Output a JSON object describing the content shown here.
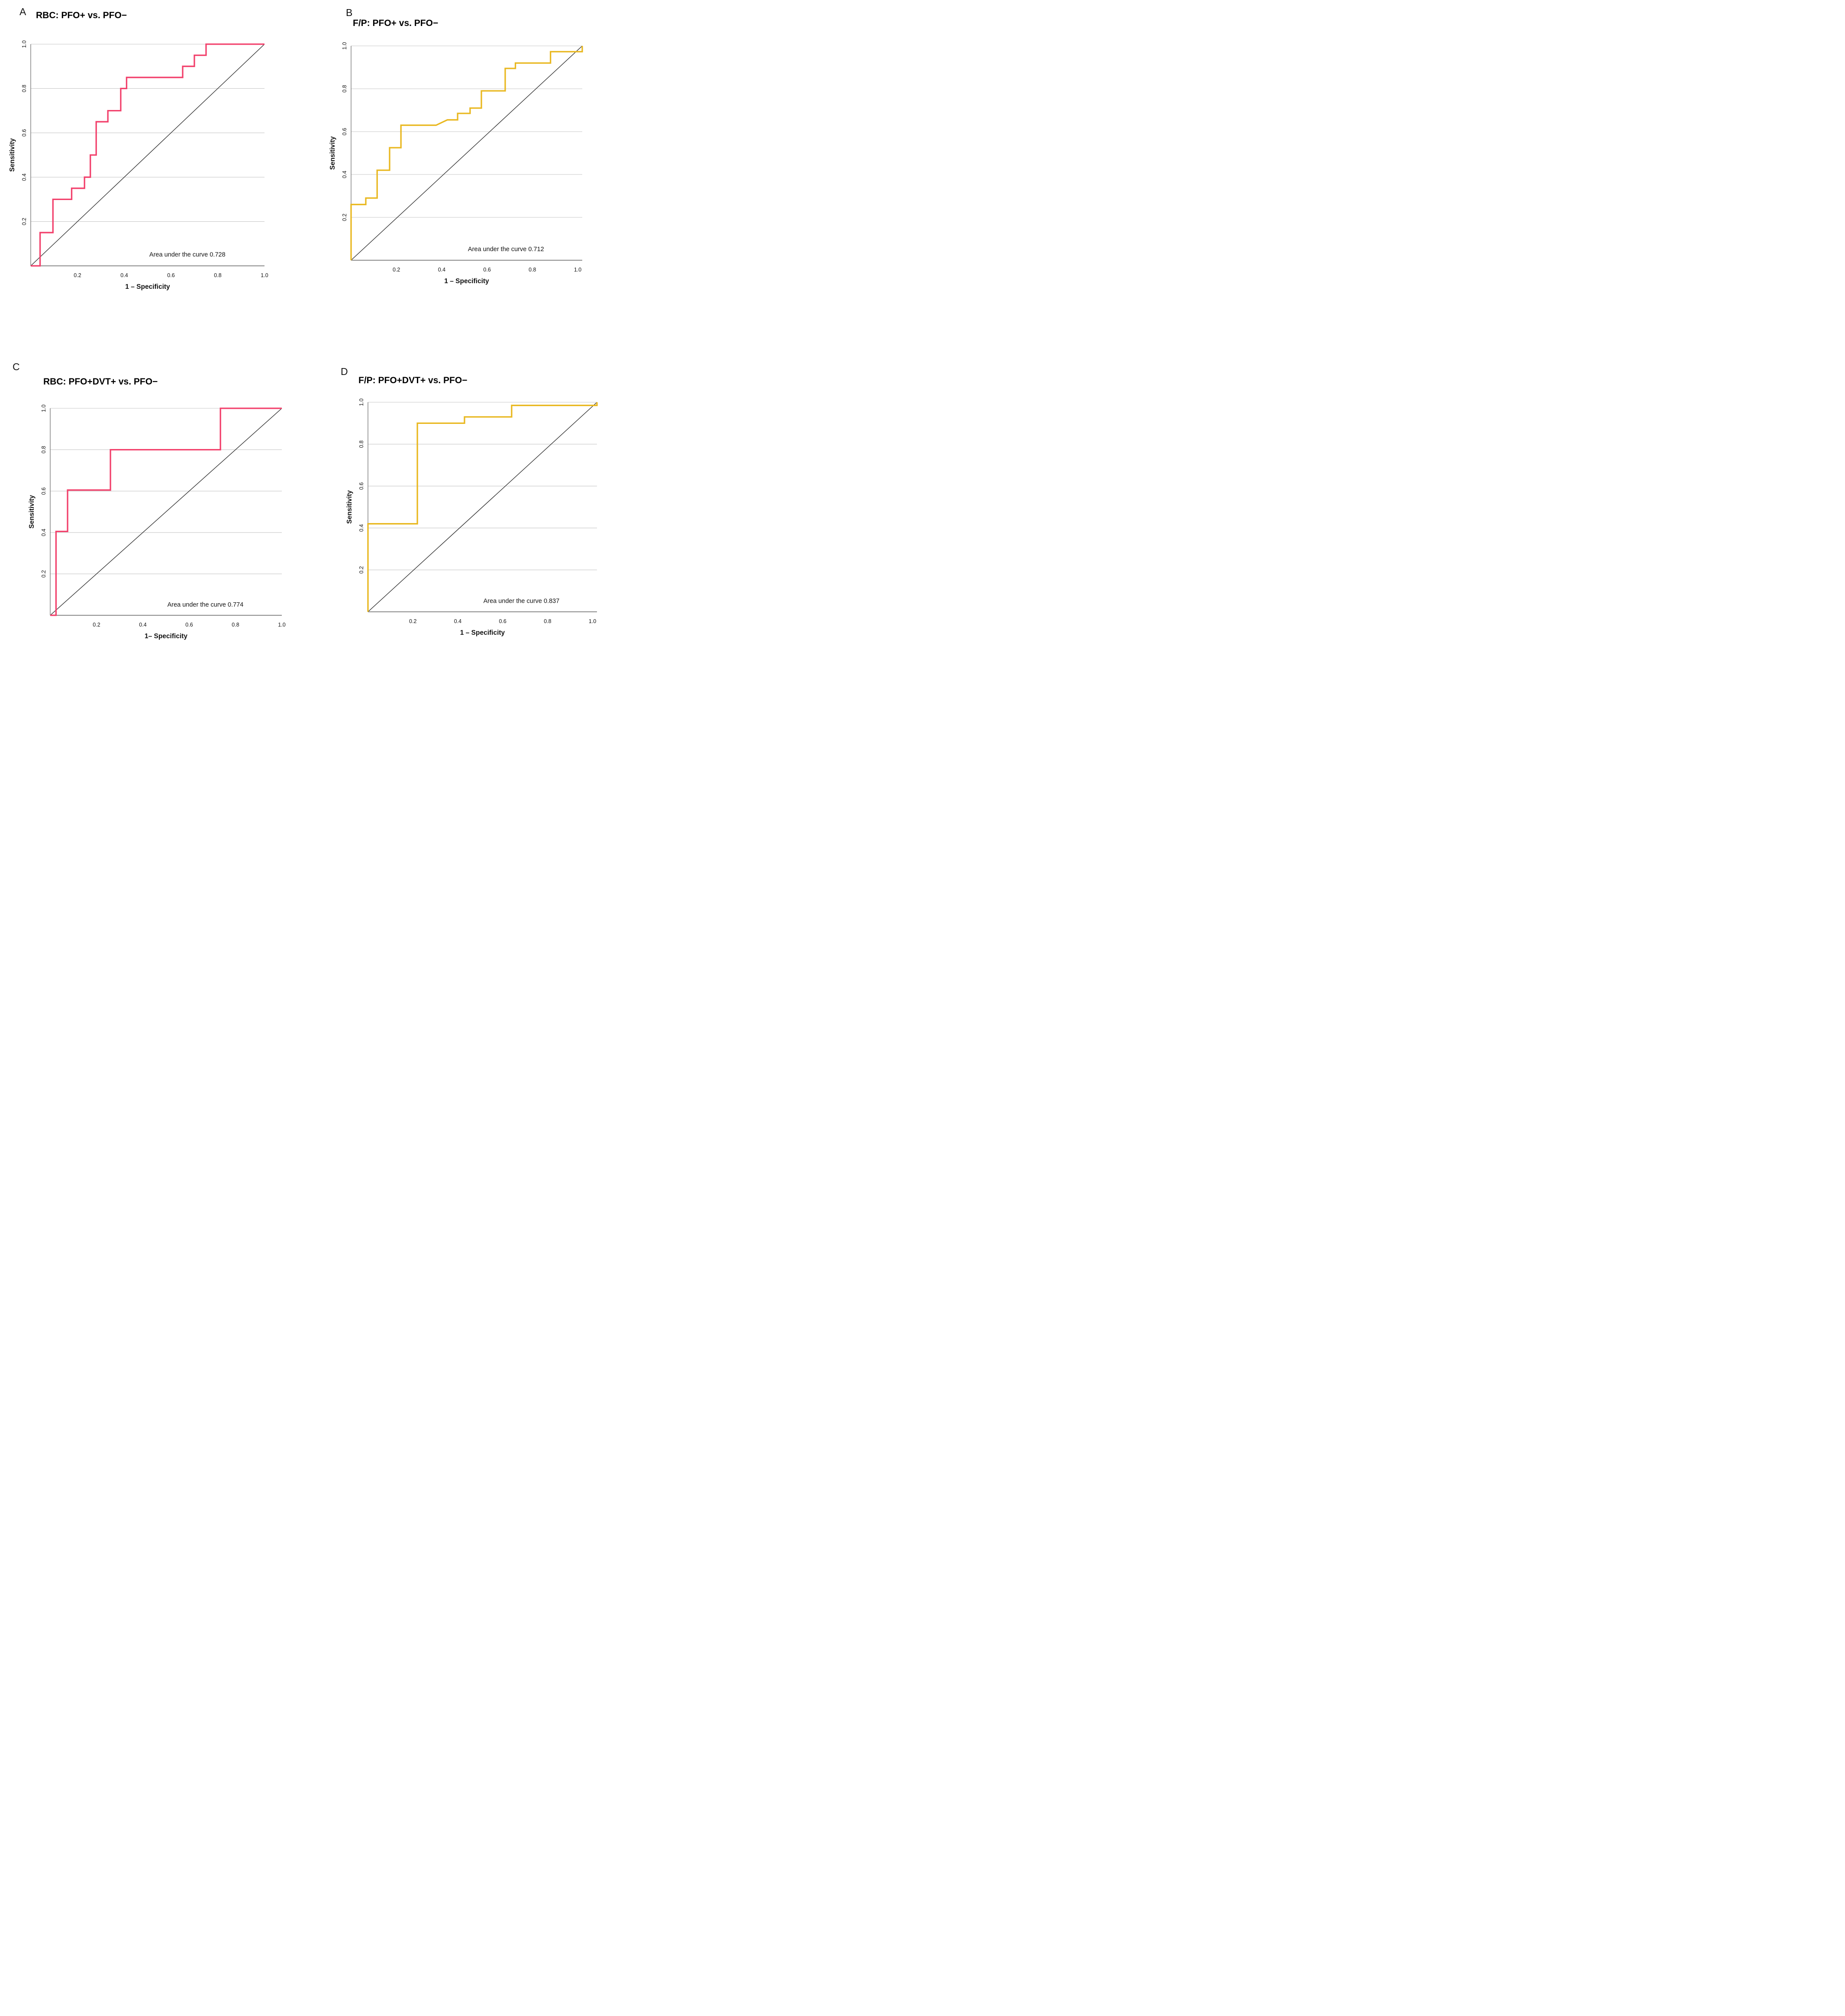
{
  "figure": {
    "background": "#ffffff",
    "description": "Four-panel ROC curve figure comparing RBC and F/P measures for PFO+ vs PFO- and PFO+DVT+ vs PFO-"
  },
  "style": {
    "grid_color": "#c7c7c7",
    "axis_color": "#7a7a7a",
    "diagonal_color": "#333333",
    "text_color": "#111111",
    "rbc_curve_color": "#f2416c",
    "fp_curve_color": "#e9b821"
  },
  "chart_data": [
    {
      "type": "line",
      "kind": "roc-step-curve",
      "panel_label": "A",
      "title": "RBC: PFO+ vs. PFO−",
      "xlabel": "1 – Specificity",
      "ylabel": "Sensitivity",
      "auc": 0.728,
      "auc_label": "Area under the curve 0.728",
      "line_color": "#f2416c",
      "xlim": [
        0,
        1.0
      ],
      "ylim": [
        0,
        1.0
      ],
      "x_ticks": [
        "0.2",
        "0.4",
        "0.6",
        "0.8",
        "1.0"
      ],
      "y_ticks": [
        "0.2",
        "0.4",
        "0.6",
        "0.8",
        "1.0"
      ],
      "grid": "horizontal-only",
      "diagonal_reference": true,
      "legend": "none",
      "roc_points": [
        [
          0,
          0
        ],
        [
          0.04,
          0
        ],
        [
          0.04,
          0.15
        ],
        [
          0.095,
          0.15
        ],
        [
          0.095,
          0.3
        ],
        [
          0.175,
          0.3
        ],
        [
          0.175,
          0.35
        ],
        [
          0.23,
          0.35
        ],
        [
          0.23,
          0.4
        ],
        [
          0.255,
          0.4
        ],
        [
          0.255,
          0.5
        ],
        [
          0.28,
          0.5
        ],
        [
          0.28,
          0.65
        ],
        [
          0.33,
          0.65
        ],
        [
          0.33,
          0.7
        ],
        [
          0.385,
          0.7
        ],
        [
          0.385,
          0.8
        ],
        [
          0.41,
          0.8
        ],
        [
          0.41,
          0.85
        ],
        [
          0.65,
          0.85
        ],
        [
          0.65,
          0.9
        ],
        [
          0.7,
          0.9
        ],
        [
          0.7,
          0.95
        ],
        [
          0.75,
          0.95
        ],
        [
          0.75,
          1.0
        ],
        [
          1.0,
          1.0
        ]
      ]
    },
    {
      "type": "line",
      "kind": "roc-step-curve",
      "panel_label": "B",
      "title": "F/P: PFO+ vs. PFO−",
      "xlabel": "1 – Specificity",
      "ylabel": "Sensitivity",
      "auc": 0.712,
      "auc_label": "Area under the curve 0.712",
      "line_color": "#e9b821",
      "xlim": [
        0,
        1.02
      ],
      "ylim": [
        0,
        1.0
      ],
      "x_ticks": [
        "0.2",
        "0.4",
        "0.6",
        "0.8",
        "1.0"
      ],
      "y_ticks": [
        "0.2",
        "0.4",
        "0.6",
        "0.8",
        "1.0"
      ],
      "grid": "horizontal-only",
      "diagonal_reference": true,
      "legend": "none",
      "roc_points": [
        [
          0,
          0
        ],
        [
          0,
          0.26
        ],
        [
          0.065,
          0.26
        ],
        [
          0.065,
          0.29
        ],
        [
          0.115,
          0.29
        ],
        [
          0.115,
          0.42
        ],
        [
          0.17,
          0.42
        ],
        [
          0.17,
          0.525
        ],
        [
          0.22,
          0.525
        ],
        [
          0.22,
          0.63
        ],
        [
          0.375,
          0.63
        ],
        [
          0.425,
          0.655
        ],
        [
          0.47,
          0.655
        ],
        [
          0.47,
          0.685
        ],
        [
          0.525,
          0.685
        ],
        [
          0.525,
          0.71
        ],
        [
          0.575,
          0.71
        ],
        [
          0.575,
          0.79
        ],
        [
          0.68,
          0.79
        ],
        [
          0.68,
          0.895
        ],
        [
          0.725,
          0.895
        ],
        [
          0.725,
          0.92
        ],
        [
          0.88,
          0.92
        ],
        [
          0.88,
          0.973
        ],
        [
          1.02,
          0.973
        ],
        [
          1.02,
          1.0
        ]
      ]
    },
    {
      "type": "line",
      "kind": "roc-step-curve",
      "panel_label": "C",
      "title": "RBC: PFO+DVT+ vs. PFO−",
      "xlabel": "1– Specificity",
      "ylabel": "Sensitivity",
      "auc": 0.774,
      "auc_label": "Area under the curve 0.774",
      "line_color": "#f2416c",
      "xlim": [
        0,
        1.0
      ],
      "ylim": [
        0,
        1.0
      ],
      "x_ticks": [
        "0.2",
        "0.4",
        "0.6",
        "0.8",
        "1.0"
      ],
      "y_ticks": [
        "0.2",
        "0.4",
        "0.6",
        "0.8",
        "1.0"
      ],
      "grid": "horizontal-only",
      "diagonal_reference": true,
      "legend": "none",
      "roc_points": [
        [
          0,
          0
        ],
        [
          0.025,
          0
        ],
        [
          0.025,
          0.405
        ],
        [
          0.075,
          0.405
        ],
        [
          0.075,
          0.605
        ],
        [
          0.26,
          0.605
        ],
        [
          0.26,
          0.8
        ],
        [
          0.735,
          0.8
        ],
        [
          0.735,
          1.0
        ],
        [
          1.0,
          1.0
        ]
      ]
    },
    {
      "type": "line",
      "kind": "roc-step-curve",
      "panel_label": "D",
      "title": "F/P: PFO+DVT+ vs. PFO−",
      "xlabel": "1 – Specificity",
      "ylabel": "Sensitivity",
      "auc": 0.837,
      "auc_label": "Area under the curve 0.837",
      "line_color": "#e9b821",
      "xlim": [
        0,
        1.02
      ],
      "ylim": [
        0,
        1.0
      ],
      "x_ticks": [
        "0.2",
        "0.4",
        "0.6",
        "0.8",
        "1.0"
      ],
      "y_ticks": [
        "0.2",
        "0.4",
        "0.6",
        "0.8",
        "1.0"
      ],
      "grid": "horizontal-only",
      "diagonal_reference": true,
      "legend": "none",
      "roc_points": [
        [
          0,
          0
        ],
        [
          0,
          0.42
        ],
        [
          0.22,
          0.42
        ],
        [
          0.22,
          0.9
        ],
        [
          0.43,
          0.9
        ],
        [
          0.43,
          0.93
        ],
        [
          0.64,
          0.93
        ],
        [
          0.64,
          0.985
        ],
        [
          1.02,
          0.985
        ],
        [
          1.02,
          1.0
        ]
      ]
    }
  ]
}
